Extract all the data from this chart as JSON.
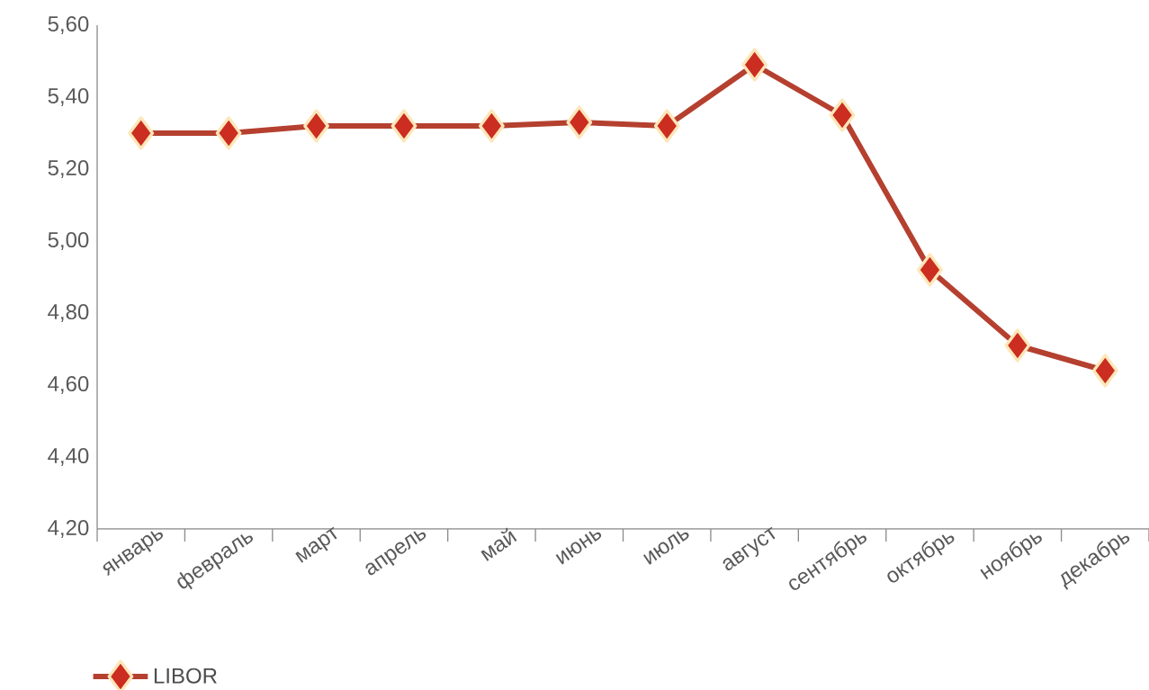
{
  "chart_data": {
    "type": "line",
    "categories": [
      "январь",
      "февраль",
      "март",
      "апрель",
      "май",
      "июнь",
      "июль",
      "август",
      "сентябрь",
      "октябрь",
      "ноябрь",
      "декабрь"
    ],
    "series": [
      {
        "name": "LIBOR",
        "color": "#b5402f",
        "values": [
          5.3,
          5.3,
          5.32,
          5.32,
          5.32,
          5.33,
          5.32,
          5.49,
          5.35,
          4.92,
          4.71,
          4.64
        ]
      }
    ],
    "ylim": [
      4.2,
      5.6
    ],
    "yticks": [
      {
        "value": 4.2,
        "label": "4,20"
      },
      {
        "value": 4.4,
        "label": "4,40"
      },
      {
        "value": 4.6,
        "label": "4,60"
      },
      {
        "value": 4.8,
        "label": "4,80"
      },
      {
        "value": 5.0,
        "label": "5,00"
      },
      {
        "value": 5.2,
        "label": "5,20"
      },
      {
        "value": 5.4,
        "label": "5,40"
      },
      {
        "value": 5.6,
        "label": "5,60"
      }
    ],
    "grid": false,
    "legend": "bottom left",
    "marker": "diamond",
    "line_style": "solid"
  }
}
